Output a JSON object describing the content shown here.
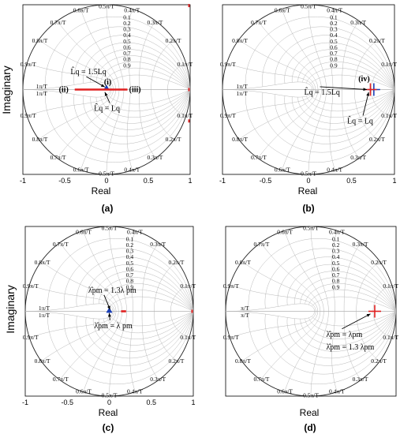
{
  "chart_data": [
    {
      "id": "a",
      "type": "scatter",
      "panel_label": "(a)",
      "xlabel": "Real",
      "ylabel": "Imaginary",
      "xlim": [
        -1,
        1
      ],
      "ylim": [
        -1,
        1
      ],
      "xticks": [
        "-1",
        "-0.5",
        "0",
        "0.5",
        "1"
      ],
      "zeta_labels": [
        "0.1",
        "0.2",
        "0.3",
        "0.4",
        "0.5",
        "0.6",
        "0.7",
        "0.8",
        "0.9"
      ],
      "wn_labels": [
        "0.1π/T",
        "0.2π/T",
        "0.3π/T",
        "0.4π/T",
        "0.5π/T",
        "0.6π/T",
        "0.7π/T",
        "0.8π/T",
        "0.9π/T",
        "1π/T"
      ],
      "series": [
        {
          "marker": "triangle",
          "color": "#1a3fb8",
          "x": [
            0
          ],
          "y": [
            0.02
          ]
        },
        {
          "marker": "line",
          "color": "#e02020",
          "x": [
            -0.38,
            0.25
          ],
          "y": [
            0,
            0
          ]
        },
        {
          "marker": "tick",
          "color": "#e02020",
          "x": [
            1.0,
            1.0,
            1.0
          ],
          "y": [
            0.99,
            0.0,
            -0.37
          ]
        }
      ],
      "annotations": [
        {
          "text": "L̂q = 1.5Lq",
          "lx": -0.43,
          "ly": 0.18,
          "ax": -0.02,
          "ay": 0.03
        },
        {
          "text": "L̂q = Lq",
          "lx": -0.15,
          "ly": -0.25,
          "ax": -0.02,
          "ay": -0.03
        },
        {
          "text": "(i)",
          "lx": -0.03,
          "ly": 0.06,
          "ax": null,
          "ay": null
        },
        {
          "text": "(ii)",
          "lx": -0.57,
          "ly": -0.03,
          "ax": null,
          "ay": null
        },
        {
          "text": "(iii)",
          "lx": 0.27,
          "ly": -0.03,
          "ax": null,
          "ay": null
        }
      ]
    },
    {
      "id": "b",
      "type": "scatter",
      "panel_label": "(b)",
      "xlabel": "Real",
      "ylabel": "",
      "xlim": [
        -1,
        1
      ],
      "ylim": [
        -1,
        1
      ],
      "xticks": [
        "-1",
        "-0.5",
        "0",
        "0.5",
        "1"
      ],
      "zeta_labels": [
        "0.1",
        "0.2",
        "0.3",
        "0.4",
        "0.5",
        "0.6",
        "0.7",
        "0.8",
        "0.9"
      ],
      "wn_labels": [
        "0.1π/T",
        "0.2π/T",
        "0.3π/T",
        "0.4π/T",
        "0.5π/T",
        "0.6π/T",
        "0.7π/T",
        "0.8π/T",
        "0.9π/T",
        "1π/T"
      ],
      "series": [
        {
          "marker": "plus",
          "color": "#1a3fb8",
          "x": [
            0.76
          ],
          "y": [
            0
          ]
        },
        {
          "marker": "plus",
          "color": "#e02020",
          "x": [
            0.72
          ],
          "y": [
            0
          ]
        }
      ],
      "annotations": [
        {
          "text": "L̂q = 1.5Lq",
          "lx": -0.05,
          "ly": -0.06,
          "ax": 0.68,
          "ay": 0.0
        },
        {
          "text": "L̂q = Lq",
          "lx": 0.45,
          "ly": -0.4,
          "ax": 0.7,
          "ay": -0.03
        },
        {
          "text": "(iv)",
          "lx": 0.58,
          "ly": 0.1,
          "ax": null,
          "ay": null
        }
      ]
    },
    {
      "id": "c",
      "type": "scatter",
      "panel_label": "(c)",
      "xlabel": "Real",
      "ylabel": "Imaginary",
      "xlim": [
        -1,
        1
      ],
      "ylim": [
        -1,
        1
      ],
      "xticks": [
        "-1",
        "-0.5",
        "0",
        "0.5",
        "1"
      ],
      "zeta_labels": [
        "0.1",
        "0.2",
        "0.3",
        "0.4",
        "0.5",
        "0.6",
        "0.7",
        "0.8",
        "0.9"
      ],
      "wn_labels": [
        "0.1π/T",
        "0.2π/T",
        "0.3π/T",
        "0.4π/T",
        "0.5π/T",
        "0.6π/T",
        "0.7π/T",
        "0.8π/T",
        "0.9π/T",
        "1π/T"
      ],
      "series": [
        {
          "marker": "triangle",
          "color": "#1a3fb8",
          "x": [
            0
          ],
          "y": [
            0.01
          ]
        },
        {
          "marker": "line",
          "color": "#e02020",
          "x": [
            0.14,
            0.2
          ],
          "y": [
            0,
            0
          ]
        },
        {
          "marker": "tick",
          "color": "#e02020",
          "x": [
            1.0
          ],
          "y": [
            0.0
          ]
        }
      ],
      "annotations": [
        {
          "text": "λ̂pm = 1.3λ pm",
          "lx": -0.25,
          "ly": 0.22,
          "ax": 0.01,
          "ay": 0.02
        },
        {
          "text": "λ̂pm = λ pm",
          "lx": -0.18,
          "ly": -0.2,
          "ax": 0.0,
          "ay": -0.02
        }
      ]
    },
    {
      "id": "d",
      "type": "scatter",
      "panel_label": "(d)",
      "xlabel": "Real",
      "ylabel": "",
      "xlim": [
        -1,
        1
      ],
      "ylim": [
        -1,
        1
      ],
      "xticks": [],
      "zeta_labels": [
        "0.1",
        "0.2",
        "0.3",
        "0.4",
        "0.5",
        "0.6",
        "0.7",
        "0.8",
        "0.9"
      ],
      "wn_labels": [
        "0.1π/T",
        "0.2π/T",
        "0.3π/T",
        "0.4π/T",
        "0.5π/T",
        "0.6π/T",
        "0.7π/T",
        "0.8π/T",
        "0.9π/T",
        "π/T"
      ],
      "series": [
        {
          "marker": "plus",
          "color": "#e02020",
          "x": [
            0.75
          ],
          "y": [
            0
          ]
        }
      ],
      "annotations": [
        {
          "text": "λ̂pm = λpm",
          "lx": 0.18,
          "ly": -0.3,
          "ax": 0.7,
          "ay": -0.03
        },
        {
          "text": "λ̂pm = 1.3 λpm",
          "lx": 0.18,
          "ly": -0.45,
          "ax": null,
          "ay": null
        }
      ]
    }
  ]
}
